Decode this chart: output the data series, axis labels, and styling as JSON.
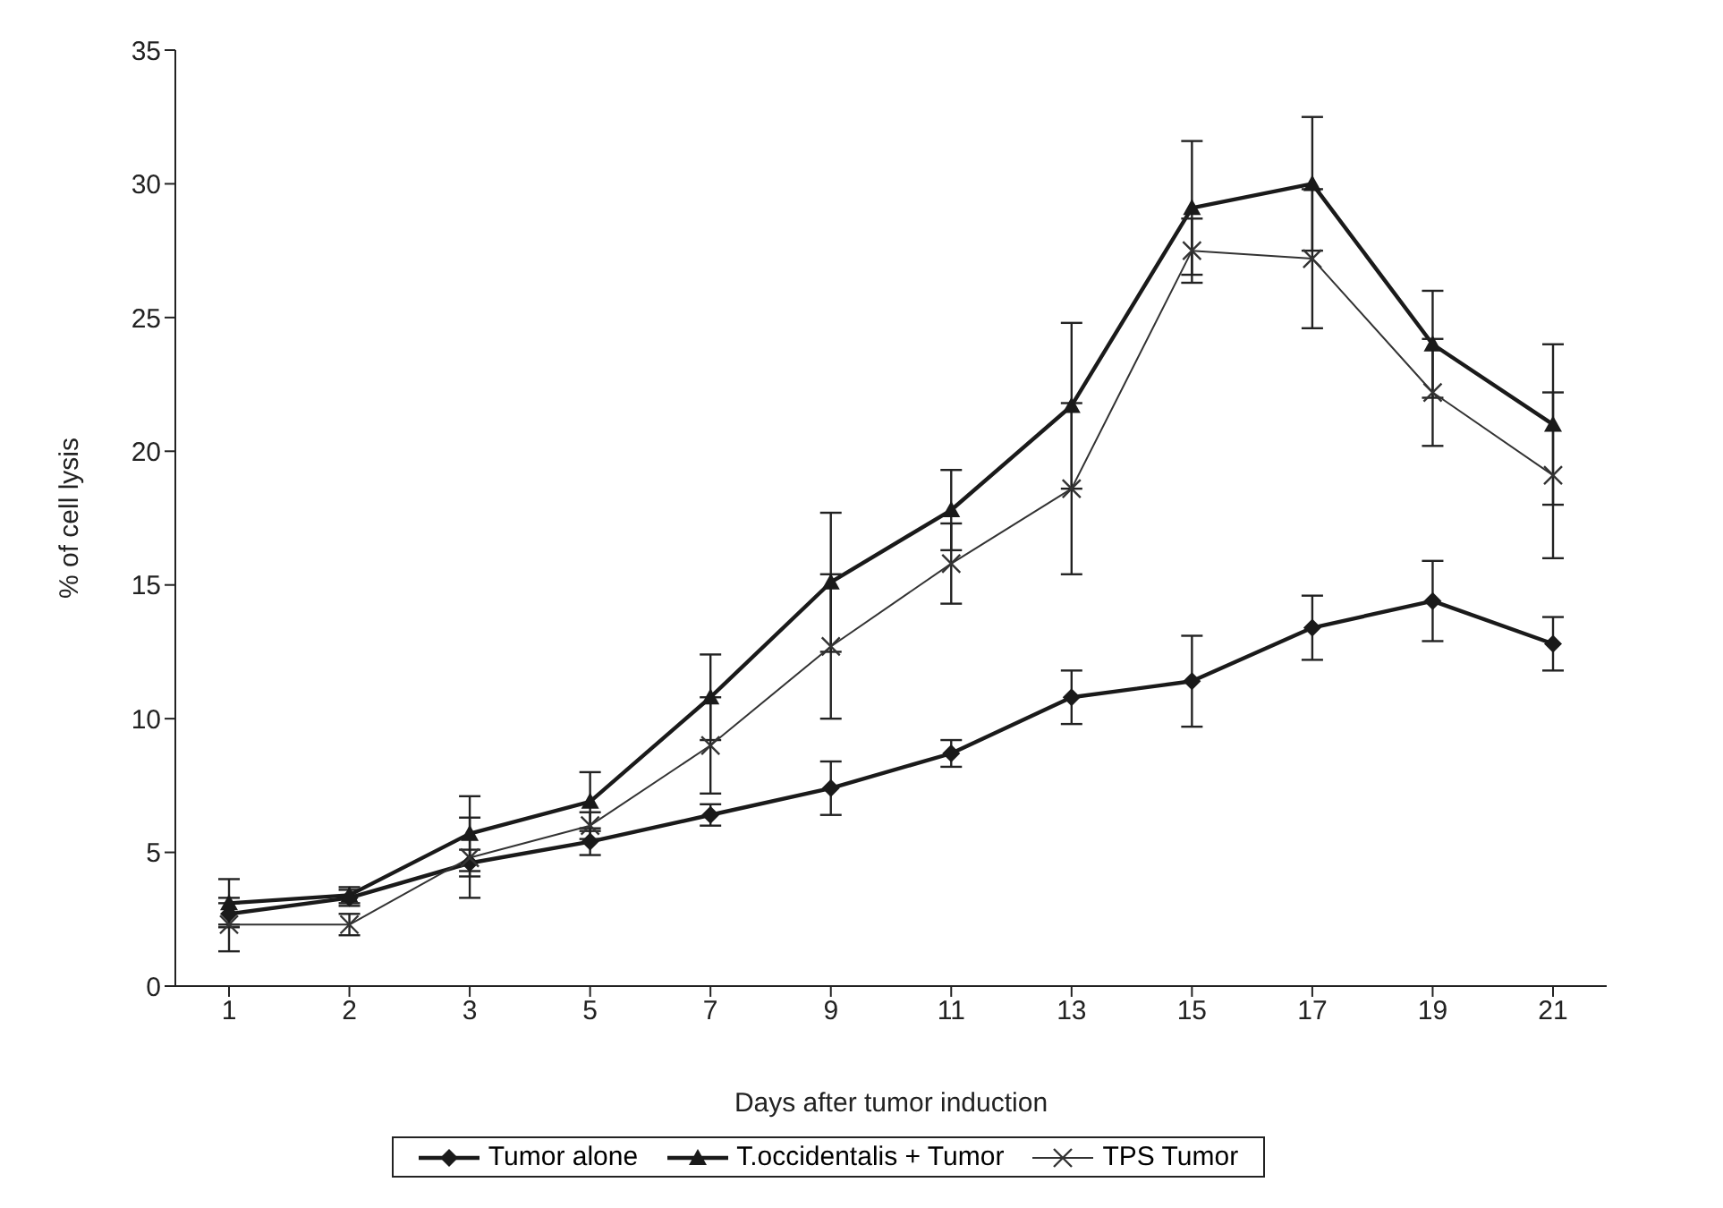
{
  "chart_data": {
    "type": "line",
    "xlabel": "Days after tumor induction",
    "ylabel": "% of cell lysis",
    "categories": [
      "1",
      "2",
      "3",
      "5",
      "7",
      "9",
      "11",
      "13",
      "15",
      "17",
      "19",
      "21"
    ],
    "ylim": [
      0,
      35
    ],
    "yticks": [
      0,
      5,
      10,
      15,
      20,
      25,
      30,
      35
    ],
    "grid": false,
    "legend": "bottom",
    "line_style": "solid",
    "series": [
      {
        "name": "Tumor alone",
        "color": "#1a1a1a",
        "marker": "diamond",
        "values": [
          2.7,
          3.3,
          4.6,
          5.4,
          6.4,
          7.4,
          8.7,
          10.8,
          11.4,
          13.4,
          14.4,
          12.8
        ],
        "errors": [
          0.4,
          0.3,
          0.5,
          0.5,
          0.4,
          1.0,
          0.5,
          1.0,
          1.7,
          1.2,
          1.5,
          1.0
        ]
      },
      {
        "name": "T.occidentalis + Tumor",
        "color": "#1a1a1a",
        "marker": "triangle",
        "values": [
          3.1,
          3.4,
          5.7,
          6.9,
          10.8,
          15.1,
          17.8,
          21.7,
          29.1,
          30.0,
          24.0,
          21.0
        ],
        "errors": [
          0.9,
          0.3,
          1.4,
          1.1,
          1.6,
          2.6,
          1.5,
          3.1,
          2.5,
          2.5,
          2.0,
          3.0
        ]
      },
      {
        "name": "TPS Tumor",
        "color": "#333333",
        "marker": "cross",
        "values": [
          2.3,
          2.3,
          4.8,
          6.0,
          9.0,
          12.7,
          15.8,
          18.6,
          27.5,
          27.2,
          22.2,
          19.1
        ],
        "errors": [
          1.0,
          0.4,
          1.5,
          0.5,
          1.8,
          2.7,
          1.5,
          3.2,
          1.2,
          2.6,
          2.0,
          3.1
        ]
      }
    ]
  }
}
